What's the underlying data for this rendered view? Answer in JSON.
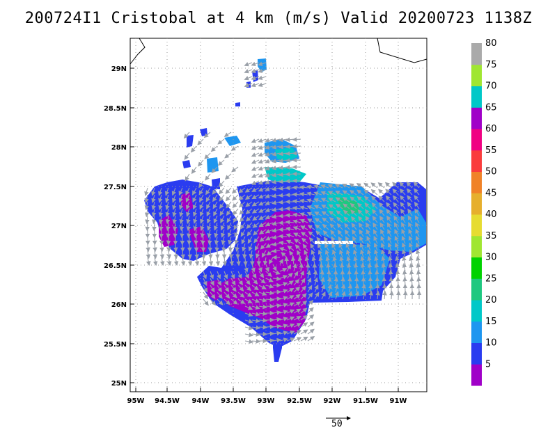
{
  "title": "200724I1 Cristobal at 4 km (m/s) Valid 20200723 1138Z",
  "map": {
    "lat_labels": [
      "29N",
      "28.5N",
      "28N",
      "27.5N",
      "27N",
      "26.5N",
      "26N",
      "25.5N",
      "25N"
    ],
    "lon_labels": [
      "95W",
      "94.5W",
      "94W",
      "93.5W",
      "93W",
      "92.5W",
      "92W",
      "91.5W",
      "91W"
    ],
    "gridlines": true,
    "features": [
      "coastline",
      "wind-speed-shading",
      "wind-vectors"
    ]
  },
  "colorbar": {
    "labels": [
      "5",
      "10",
      "15",
      "20",
      "25",
      "30",
      "35",
      "40",
      "45",
      "50",
      "55",
      "60",
      "65",
      "70",
      "75",
      "80"
    ],
    "colors": [
      "#a000c8",
      "#2a3cf0",
      "#1e96f0",
      "#00c8c8",
      "#1ec880",
      "#00d200",
      "#a0e632",
      "#e6dc32",
      "#e6af2d",
      "#f08228",
      "#fa3c3c",
      "#f00082",
      "#a000c8",
      "#00c8c8",
      "#a0e632",
      "#aaaaaa"
    ]
  },
  "scale_vector": {
    "label": "50"
  }
}
